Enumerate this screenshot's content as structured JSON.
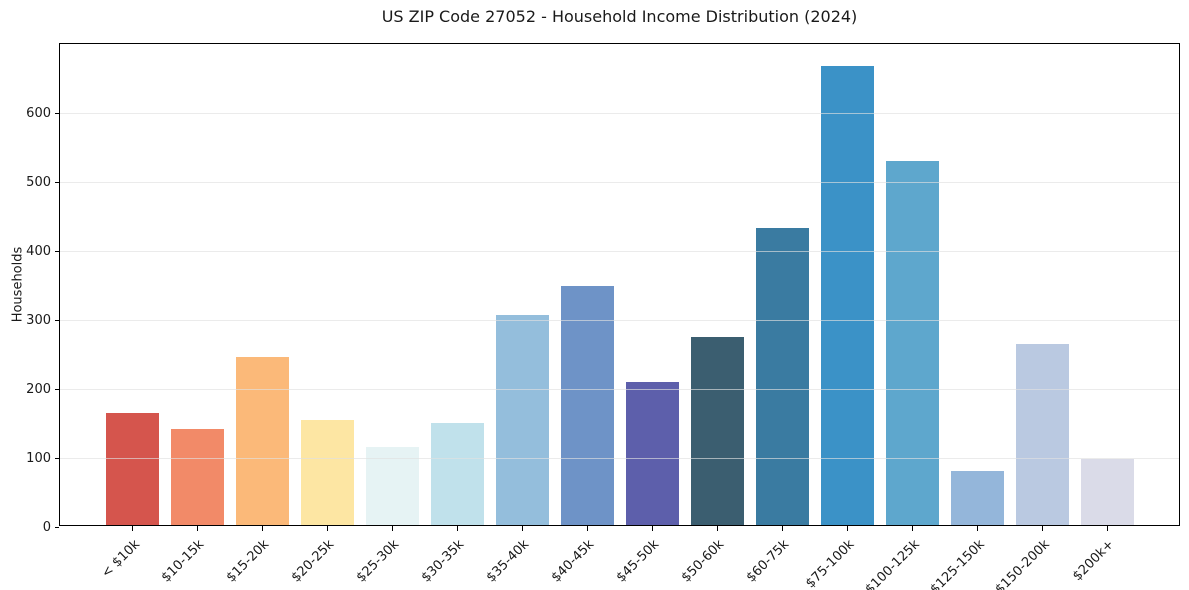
{
  "chart_data": {
    "type": "bar",
    "title": "US ZIP Code 27052 - Household Income Distribution (2024)",
    "xlabel": "",
    "ylabel": "Households",
    "ylim": [
      0,
      700
    ],
    "yticks": [
      0,
      100,
      200,
      300,
      400,
      500,
      600
    ],
    "grid": "horizontal",
    "legend": "none",
    "categories": [
      "< $10k",
      "$10-15k",
      "$15-20k",
      "$20-25k",
      "$25-30k",
      "$30-35k",
      "$35-40k",
      "$40-45k",
      "$45-50k",
      "$50-60k",
      "$60-75k",
      "$75-100k",
      "$100-125k",
      "$125-150k",
      "$150-200k",
      "$200k+"
    ],
    "values": [
      162,
      139,
      244,
      152,
      113,
      148,
      305,
      347,
      207,
      273,
      430,
      665,
      527,
      78,
      262,
      95
    ],
    "bar_colors": [
      "#d5554d",
      "#f28a68",
      "#fbb979",
      "#fde6a3",
      "#e6f3f4",
      "#c0e1eb",
      "#94bedc",
      "#6e93c7",
      "#5d5fab",
      "#3b5e70",
      "#3a7ba1",
      "#3b92c7",
      "#5ea7cd",
      "#94b6da",
      "#bac9e1",
      "#dadbe8"
    ],
    "axis_color": "#000000",
    "gridline_color": "#e7e7e7",
    "text_color": "#1a1a1a"
  }
}
